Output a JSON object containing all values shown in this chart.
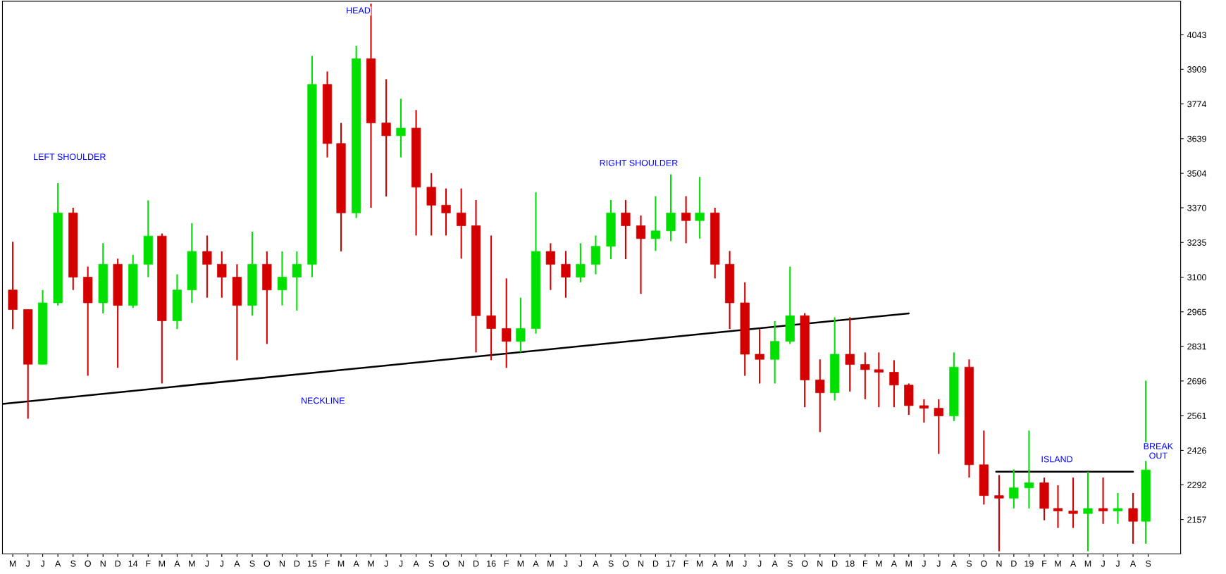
{
  "chart_data": {
    "type": "candlestick",
    "x": [
      "2013-05-15",
      "2013-06-15",
      "2013-07-15",
      "2013-08-15",
      "2013-09-15",
      "2013-10-15",
      "2013-11-15",
      "2013-12-15",
      "2014-01-15",
      "2014-02-15",
      "2014-03-15",
      "2014-04-15",
      "2014-05-15",
      "2014-06-15",
      "2014-07-15",
      "2014-08-15",
      "2014-09-15",
      "2014-10-15",
      "2014-11-15",
      "2014-12-15",
      "2015-01-15",
      "2015-02-15",
      "2015-03-15",
      "2015-04-15",
      "2015-05-15",
      "2015-06-15",
      "2015-07-15",
      "2015-08-15",
      "2015-09-15",
      "2015-10-15",
      "2015-11-15",
      "2015-12-15",
      "2016-01-15",
      "2016-02-15",
      "2016-03-15",
      "2016-04-15",
      "2016-05-15",
      "2016-06-15",
      "2016-07-15",
      "2016-08-15",
      "2016-09-15",
      "2016-10-15",
      "2016-11-15",
      "2016-12-15",
      "2017-01-15",
      "2017-02-15",
      "2017-03-15",
      "2017-04-15",
      "2017-05-15",
      "2017-06-15",
      "2017-07-15",
      "2017-08-15",
      "2017-09-15",
      "2017-10-15",
      "2017-11-15",
      "2017-12-15",
      "2018-01-15",
      "2018-02-15",
      "2018-03-15",
      "2018-04-15",
      "2018-05-15",
      "2018-06-15",
      "2018-07-15",
      "2018-08-15",
      "2018-09-15",
      "2018-10-15",
      "2018-11-15",
      "2018-12-15",
      "2019-01-15",
      "2019-02-15",
      "2019-03-15",
      "2019-04-15",
      "2019-05-15",
      "2019-06-15",
      "2019-07-15",
      "2019-08-15",
      "2019-09-10"
    ],
    "ohlc": [
      [
        3050,
        3238,
        2898,
        2974
      ],
      [
        2974,
        2974,
        2549,
        2761
      ],
      [
        2761,
        3050,
        2760,
        3000
      ],
      [
        3000,
        3466,
        2990,
        3350
      ],
      [
        3350,
        3370,
        3050,
        3100
      ],
      [
        3100,
        3141,
        2716,
        3000
      ],
      [
        3000,
        3232,
        2959,
        3150
      ],
      [
        3150,
        3172,
        2747,
        2990
      ],
      [
        2990,
        3187,
        2980,
        3150
      ],
      [
        3150,
        3399,
        3100,
        3260
      ],
      [
        3260,
        3270,
        2686,
        2930
      ],
      [
        2930,
        3111,
        2898,
        3050
      ],
      [
        3050,
        3310,
        3000,
        3200
      ],
      [
        3200,
        3262,
        3020,
        3150
      ],
      [
        3150,
        3200,
        3020,
        3100
      ],
      [
        3100,
        3150,
        2777,
        2990
      ],
      [
        2990,
        3277,
        2950,
        3150
      ],
      [
        3150,
        3200,
        2840,
        3050
      ],
      [
        3050,
        3200,
        2990,
        3100
      ],
      [
        3100,
        3200,
        2970,
        3150
      ],
      [
        3150,
        3961,
        3100,
        3850
      ],
      [
        3850,
        3900,
        3566,
        3620
      ],
      [
        3620,
        3700,
        3200,
        3350
      ],
      [
        3350,
        4000,
        3330,
        3950
      ],
      [
        3950,
        4164,
        3370,
        3700
      ],
      [
        3700,
        3870,
        3414,
        3650
      ],
      [
        3650,
        3794,
        3566,
        3680
      ],
      [
        3680,
        3750,
        3262,
        3450
      ],
      [
        3450,
        3505,
        3262,
        3380
      ],
      [
        3380,
        3445,
        3262,
        3350
      ],
      [
        3350,
        3445,
        3172,
        3300
      ],
      [
        3300,
        3400,
        2807,
        2950
      ],
      [
        2950,
        3262,
        2777,
        2900
      ],
      [
        2900,
        3095,
        2747,
        2850
      ],
      [
        2850,
        3020,
        2807,
        2900
      ],
      [
        2900,
        3430,
        2880,
        3200
      ],
      [
        3200,
        3232,
        3050,
        3150
      ],
      [
        3150,
        3202,
        3020,
        3100
      ],
      [
        3100,
        3232,
        3080,
        3150
      ],
      [
        3150,
        3262,
        3111,
        3220
      ],
      [
        3220,
        3400,
        3170,
        3350
      ],
      [
        3350,
        3400,
        3170,
        3300
      ],
      [
        3300,
        3340,
        3035,
        3250
      ],
      [
        3250,
        3415,
        3202,
        3280
      ],
      [
        3280,
        3500,
        3240,
        3350
      ],
      [
        3350,
        3415,
        3232,
        3320
      ],
      [
        3320,
        3490,
        3250,
        3350
      ],
      [
        3350,
        3370,
        3095,
        3150
      ],
      [
        3150,
        3202,
        2898,
        3000
      ],
      [
        3000,
        3080,
        2716,
        2800
      ],
      [
        2800,
        2898,
        2686,
        2780
      ],
      [
        2780,
        2929,
        2686,
        2850
      ],
      [
        2850,
        3141,
        2840,
        2950
      ],
      [
        2950,
        2960,
        2594,
        2700
      ],
      [
        2700,
        2780,
        2497,
        2650
      ],
      [
        2650,
        2944,
        2620,
        2800
      ],
      [
        2800,
        2944,
        2655,
        2760
      ],
      [
        2760,
        2807,
        2625,
        2740
      ],
      [
        2740,
        2807,
        2594,
        2730
      ],
      [
        2730,
        2777,
        2594,
        2680
      ],
      [
        2680,
        2686,
        2564,
        2600
      ],
      [
        2600,
        2625,
        2534,
        2590
      ],
      [
        2590,
        2625,
        2412,
        2560
      ],
      [
        2560,
        2807,
        2540,
        2750
      ],
      [
        2750,
        2780,
        2320,
        2370
      ],
      [
        2370,
        2503,
        2215,
        2250
      ],
      [
        2250,
        2330,
        2033,
        2240
      ],
      [
        2240,
        2352,
        2200,
        2280
      ],
      [
        2280,
        2503,
        2200,
        2300
      ],
      [
        2300,
        2320,
        2154,
        2200
      ],
      [
        2200,
        2290,
        2124,
        2190
      ],
      [
        2190,
        2320,
        2124,
        2180
      ],
      [
        2180,
        2343,
        2033,
        2200
      ],
      [
        2200,
        2320,
        2140,
        2190
      ],
      [
        2190,
        2260,
        2140,
        2200
      ],
      [
        2200,
        2260,
        2063,
        2150
      ],
      [
        2150,
        2697,
        2063,
        2350
      ]
    ],
    "colors": [
      "#d40000",
      "#d40000",
      "#00e000",
      "#00e000",
      "#d40000",
      "#d40000",
      "#00e000",
      "#d40000",
      "#00e000",
      "#00e000",
      "#d40000",
      "#00e000",
      "#00e000",
      "#d40000",
      "#d40000",
      "#d40000",
      "#00e000",
      "#d40000",
      "#00e000",
      "#00e000",
      "#00e000",
      "#d40000",
      "#d40000",
      "#00e000",
      "#d40000",
      "#d40000",
      "#00e000",
      "#d40000",
      "#d40000",
      "#d40000",
      "#d40000",
      "#d40000",
      "#d40000",
      "#d40000",
      "#00e000",
      "#00e000",
      "#d40000",
      "#d40000",
      "#00e000",
      "#00e000",
      "#00e000",
      "#d40000",
      "#d40000",
      "#00e000",
      "#00e000",
      "#d40000",
      "#00e000",
      "#d40000",
      "#d40000",
      "#d40000",
      "#d40000",
      "#00e000",
      "#00e000",
      "#d40000",
      "#d40000",
      "#00e000",
      "#d40000",
      "#d40000",
      "#d40000",
      "#d40000",
      "#d40000",
      "#d40000",
      "#d40000",
      "#00e000",
      "#d40000",
      "#d40000",
      "#d40000",
      "#00e000",
      "#00e000",
      "#d40000",
      "#d40000",
      "#d40000",
      "#00e000",
      "#d40000",
      "#00e000",
      "#d40000",
      "#00e000"
    ],
    "series": [
      {
        "type": "line",
        "color": "#000000",
        "x": [
          "2013-04-24",
          "2018-05-15"
        ],
        "values": [
          2607,
          2959
        ]
      },
      {
        "type": "line",
        "color": "#000000",
        "x": [
          "2018-11-09",
          "2019-08-15"
        ],
        "values": [
          2343,
          2343
        ]
      }
    ],
    "annotations": [
      "LEFT SHOULDER",
      "HEAD",
      "RIGHT SHOULDER",
      "NECKLINE",
      "ISLAND",
      "BREAK\nOUT"
    ],
    "xlim": [
      "2013-04-24",
      "2019-11-20"
    ],
    "xticks": [
      {
        "value": "2013-05-15",
        "label": "M"
      },
      {
        "value": "2013-06-15",
        "label": "J"
      },
      {
        "value": "2013-07-15",
        "label": "J"
      },
      {
        "value": "2013-08-15",
        "label": "A"
      },
      {
        "value": "2013-09-15",
        "label": "S"
      },
      {
        "value": "2013-10-15",
        "label": "O"
      },
      {
        "value": "2013-11-15",
        "label": "N"
      },
      {
        "value": "2013-12-15",
        "label": "D"
      },
      {
        "value": "2014-01-15",
        "label": "14"
      },
      {
        "value": "2014-02-15",
        "label": "F"
      },
      {
        "value": "2014-03-15",
        "label": "M"
      },
      {
        "value": "2014-04-15",
        "label": "A"
      },
      {
        "value": "2014-05-15",
        "label": "M"
      },
      {
        "value": "2014-06-15",
        "label": "J"
      },
      {
        "value": "2014-07-15",
        "label": "J"
      },
      {
        "value": "2014-08-15",
        "label": "A"
      },
      {
        "value": "2014-09-15",
        "label": "S"
      },
      {
        "value": "2014-10-15",
        "label": "O"
      },
      {
        "value": "2014-11-15",
        "label": "N"
      },
      {
        "value": "2014-12-15",
        "label": "D"
      },
      {
        "value": "2015-01-15",
        "label": "15"
      },
      {
        "value": "2015-02-15",
        "label": "F"
      },
      {
        "value": "2015-03-15",
        "label": "M"
      },
      {
        "value": "2015-04-15",
        "label": "A"
      },
      {
        "value": "2015-05-15",
        "label": "M"
      },
      {
        "value": "2015-06-15",
        "label": "J"
      },
      {
        "value": "2015-07-15",
        "label": "J"
      },
      {
        "value": "2015-08-15",
        "label": "A"
      },
      {
        "value": "2015-09-15",
        "label": "S"
      },
      {
        "value": "2015-10-15",
        "label": "O"
      },
      {
        "value": "2015-11-15",
        "label": "N"
      },
      {
        "value": "2015-12-15",
        "label": "D"
      },
      {
        "value": "2016-01-15",
        "label": "16"
      },
      {
        "value": "2016-02-15",
        "label": "F"
      },
      {
        "value": "2016-03-15",
        "label": "M"
      },
      {
        "value": "2016-04-15",
        "label": "A"
      },
      {
        "value": "2016-05-15",
        "label": "M"
      },
      {
        "value": "2016-06-15",
        "label": "J"
      },
      {
        "value": "2016-07-15",
        "label": "J"
      },
      {
        "value": "2016-08-15",
        "label": "A"
      },
      {
        "value": "2016-09-15",
        "label": "S"
      },
      {
        "value": "2016-10-15",
        "label": "O"
      },
      {
        "value": "2016-11-15",
        "label": "N"
      },
      {
        "value": "2016-12-15",
        "label": "D"
      },
      {
        "value": "2017-01-15",
        "label": "17"
      },
      {
        "value": "2017-02-15",
        "label": "F"
      },
      {
        "value": "2017-03-15",
        "label": "M"
      },
      {
        "value": "2017-04-15",
        "label": "A"
      },
      {
        "value": "2017-05-15",
        "label": "M"
      },
      {
        "value": "2017-06-15",
        "label": "J"
      },
      {
        "value": "2017-07-15",
        "label": "J"
      },
      {
        "value": "2017-08-15",
        "label": "A"
      },
      {
        "value": "2017-09-15",
        "label": "S"
      },
      {
        "value": "2017-10-15",
        "label": "O"
      },
      {
        "value": "2017-11-15",
        "label": "N"
      },
      {
        "value": "2017-12-15",
        "label": "D"
      },
      {
        "value": "2018-01-15",
        "label": "18"
      },
      {
        "value": "2018-02-15",
        "label": "F"
      },
      {
        "value": "2018-03-15",
        "label": "M"
      },
      {
        "value": "2018-04-15",
        "label": "A"
      },
      {
        "value": "2018-05-15",
        "label": "M"
      },
      {
        "value": "2018-06-15",
        "label": "J"
      },
      {
        "value": "2018-07-15",
        "label": "J"
      },
      {
        "value": "2018-08-15",
        "label": "A"
      },
      {
        "value": "2018-09-15",
        "label": "S"
      },
      {
        "value": "2018-10-15",
        "label": "O"
      },
      {
        "value": "2018-11-15",
        "label": "N"
      },
      {
        "value": "2018-12-15",
        "label": "D"
      },
      {
        "value": "2019-01-15",
        "label": "19"
      },
      {
        "value": "2019-02-15",
        "label": "F"
      },
      {
        "value": "2019-03-15",
        "label": "M"
      },
      {
        "value": "2019-04-15",
        "label": "A"
      },
      {
        "value": "2019-05-15",
        "label": "M"
      },
      {
        "value": "2019-06-15",
        "label": "J"
      },
      {
        "value": "2019-07-15",
        "label": "J"
      },
      {
        "value": "2019-08-15",
        "label": "A"
      },
      {
        "value": "2019-09-15",
        "label": "S"
      }
    ],
    "ylim": [
      2023,
      4174
    ],
    "yticks": [
      2157,
      2292,
      2426,
      2561,
      2696,
      2831,
      2965,
      3100,
      3235,
      3370,
      3504,
      3639,
      3774,
      3909,
      4043
    ],
    "grid": false
  }
}
